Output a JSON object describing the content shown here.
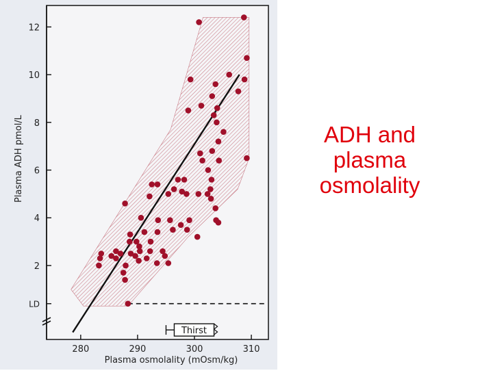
{
  "slide": {
    "title_lines": [
      "ADH and",
      "plasma",
      "osmolality"
    ],
    "title_color": "#e0000b"
  },
  "chart_data": {
    "type": "scatter",
    "xlabel": "Plasma osmolality (mOsm/kg)",
    "ylabel": "Plasma ADH pmol/L",
    "xlim": [
      274,
      313
    ],
    "ylim": [
      -1.1,
      12.9
    ],
    "x_ticks": [
      280,
      290,
      300,
      310
    ],
    "y_ticks": [
      2,
      4,
      6,
      8,
      10,
      12
    ],
    "y_extra_tick_label": "LD",
    "ld_level": 0.4,
    "grid": false,
    "colors": {
      "points": "#a0102a",
      "band": "#c97b86",
      "line": "#111111"
    },
    "points": [
      [
        288.3,
        0.4
      ],
      [
        287.5,
        1.7
      ],
      [
        287.8,
        1.4
      ],
      [
        287.9,
        2.0
      ],
      [
        286.2,
        2.3
      ],
      [
        287.0,
        2.5
      ],
      [
        283.2,
        2.0
      ],
      [
        283.4,
        2.3
      ],
      [
        283.6,
        2.5
      ],
      [
        285.4,
        2.4
      ],
      [
        286.2,
        2.6
      ],
      [
        288.8,
        2.5
      ],
      [
        289.6,
        2.4
      ],
      [
        290.3,
        2.8
      ],
      [
        290.2,
        2.2
      ],
      [
        290.4,
        2.6
      ],
      [
        288.6,
        3.0
      ],
      [
        288.7,
        3.3
      ],
      [
        289.8,
        3.0
      ],
      [
        291.2,
        3.4
      ],
      [
        291.6,
        2.3
      ],
      [
        292.2,
        2.6
      ],
      [
        292.3,
        3.0
      ],
      [
        293.4,
        2.1
      ],
      [
        294.4,
        2.6
      ],
      [
        294.8,
        2.4
      ],
      [
        295.4,
        2.1
      ],
      [
        293.5,
        3.4
      ],
      [
        296.2,
        3.5
      ],
      [
        297.6,
        3.7
      ],
      [
        298.7,
        3.5
      ],
      [
        300.5,
        3.2
      ],
      [
        299.1,
        3.9
      ],
      [
        295.7,
        3.9
      ],
      [
        293.6,
        3.9
      ],
      [
        290.6,
        4.0
      ],
      [
        287.8,
        4.6
      ],
      [
        292.1,
        4.9
      ],
      [
        292.5,
        5.4
      ],
      [
        293.5,
        5.4
      ],
      [
        295.4,
        5.0
      ],
      [
        296.4,
        5.2
      ],
      [
        297.1,
        5.6
      ],
      [
        297.8,
        5.1
      ],
      [
        298.2,
        5.6
      ],
      [
        298.6,
        5.0
      ],
      [
        300.7,
        5.0
      ],
      [
        302.3,
        5.0
      ],
      [
        302.9,
        4.8
      ],
      [
        303.7,
        4.4
      ],
      [
        303.8,
        3.9
      ],
      [
        304.2,
        3.8
      ],
      [
        302.8,
        5.2
      ],
      [
        303.0,
        5.6
      ],
      [
        301.4,
        6.4
      ],
      [
        302.4,
        6.0
      ],
      [
        301.0,
        6.7
      ],
      [
        303.1,
        6.8
      ],
      [
        304.3,
        6.4
      ],
      [
        304.2,
        7.2
      ],
      [
        305.1,
        7.6
      ],
      [
        303.4,
        8.3
      ],
      [
        303.9,
        8.0
      ],
      [
        304.0,
        8.6
      ],
      [
        303.1,
        9.1
      ],
      [
        303.7,
        9.6
      ],
      [
        301.2,
        8.7
      ],
      [
        298.9,
        8.5
      ],
      [
        299.3,
        9.8
      ],
      [
        306.1,
        10.0
      ],
      [
        307.7,
        9.3
      ],
      [
        308.8,
        9.8
      ],
      [
        309.2,
        10.7
      ],
      [
        309.2,
        6.5
      ],
      [
        300.8,
        12.2
      ],
      [
        308.7,
        12.4
      ]
    ],
    "regression_line": [
      [
        278.6,
        -0.8
      ],
      [
        307.9,
        10.0
      ]
    ],
    "band_polygon": [
      [
        280.5,
        0.3
      ],
      [
        288.3,
        0.3
      ],
      [
        298.9,
        3.2
      ],
      [
        307.6,
        5.2
      ],
      [
        309.6,
        6.5
      ],
      [
        309.6,
        12.4
      ],
      [
        301.5,
        12.4
      ],
      [
        295.8,
        7.7
      ],
      [
        278.3,
        1.0
      ]
    ],
    "thirst_box": {
      "label": "Thirst",
      "x_start": 295.0,
      "x_end": 304.4,
      "y": -0.7
    }
  }
}
